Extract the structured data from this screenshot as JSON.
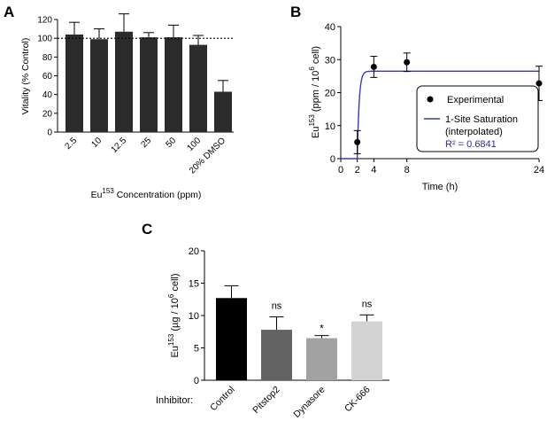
{
  "figure": {
    "panels": [
      {
        "letter": "A"
      },
      {
        "letter": "B"
      },
      {
        "letter": "C"
      }
    ]
  },
  "chart_data": [
    {
      "panel": "A",
      "type": "bar",
      "title": "",
      "xlabel_base": "Eu",
      "xlabel_sup": "153",
      "xlabel_rest": " Concentration (ppm)",
      "ylabel": "Vitality (% Control)",
      "ylim": [
        0,
        120
      ],
      "yticks": [
        0,
        20,
        40,
        60,
        80,
        100,
        120
      ],
      "categories": [
        "2.5",
        "10",
        "12.5",
        "25",
        "50",
        "100",
        "20% DMSO"
      ],
      "values": [
        104,
        99,
        107,
        101,
        101,
        93,
        43
      ],
      "errors": [
        13,
        11,
        19,
        5,
        13,
        10,
        12
      ],
      "bar_color": "#2b2b2b",
      "reference_line": {
        "y": 100,
        "style": "dotted"
      }
    },
    {
      "panel": "B",
      "type": "scatter",
      "xlabel": "Time (h)",
      "ylabel_base": "Eu",
      "ylabel_sup1": "153",
      "ylabel_mid": " (ppm / 10",
      "ylabel_sup2": "6",
      "ylabel_end": " cell)",
      "xlim": [
        0,
        24
      ],
      "ylim": [
        0,
        40
      ],
      "xticks": [
        0,
        2,
        4,
        8,
        24
      ],
      "yticks": [
        0,
        10,
        20,
        30,
        40
      ],
      "series": [
        {
          "name": "Experimental",
          "x": [
            2,
            4,
            8,
            24
          ],
          "y": [
            5,
            27.8,
            29.2,
            22.8
          ],
          "err": [
            3.5,
            3.2,
            2.8,
            5.2
          ],
          "color": "#000000"
        },
        {
          "name": "1-Site Saturation",
          "name_line2": "(interpolated)",
          "type": "line",
          "color": "#3a3ab8",
          "model": {
            "plateau": 26.5,
            "start": 2.0,
            "k": 4.5
          }
        }
      ],
      "r2_label": "R² = 0.6841"
    },
    {
      "panel": "C",
      "type": "bar",
      "ylabel_base": "Eu",
      "ylabel_sup1": "153",
      "ylabel_mid": " (µg / 10",
      "ylabel_sup2": "6",
      "ylabel_end": " cell)",
      "ylim": [
        0,
        20
      ],
      "yticks": [
        0,
        5,
        10,
        15,
        20
      ],
      "group_label": "Inhibitor:",
      "categories": [
        "Control",
        "Pitstop2",
        "Dynasore",
        "CK-666"
      ],
      "values": [
        12.7,
        7.8,
        6.5,
        9.1
      ],
      "errors": [
        1.9,
        2.0,
        0.4,
        1.0
      ],
      "significance": [
        "",
        "ns",
        "*",
        "ns"
      ],
      "colors": [
        "#000000",
        "#636363",
        "#a2a2a2",
        "#d3d3d3"
      ]
    }
  ]
}
